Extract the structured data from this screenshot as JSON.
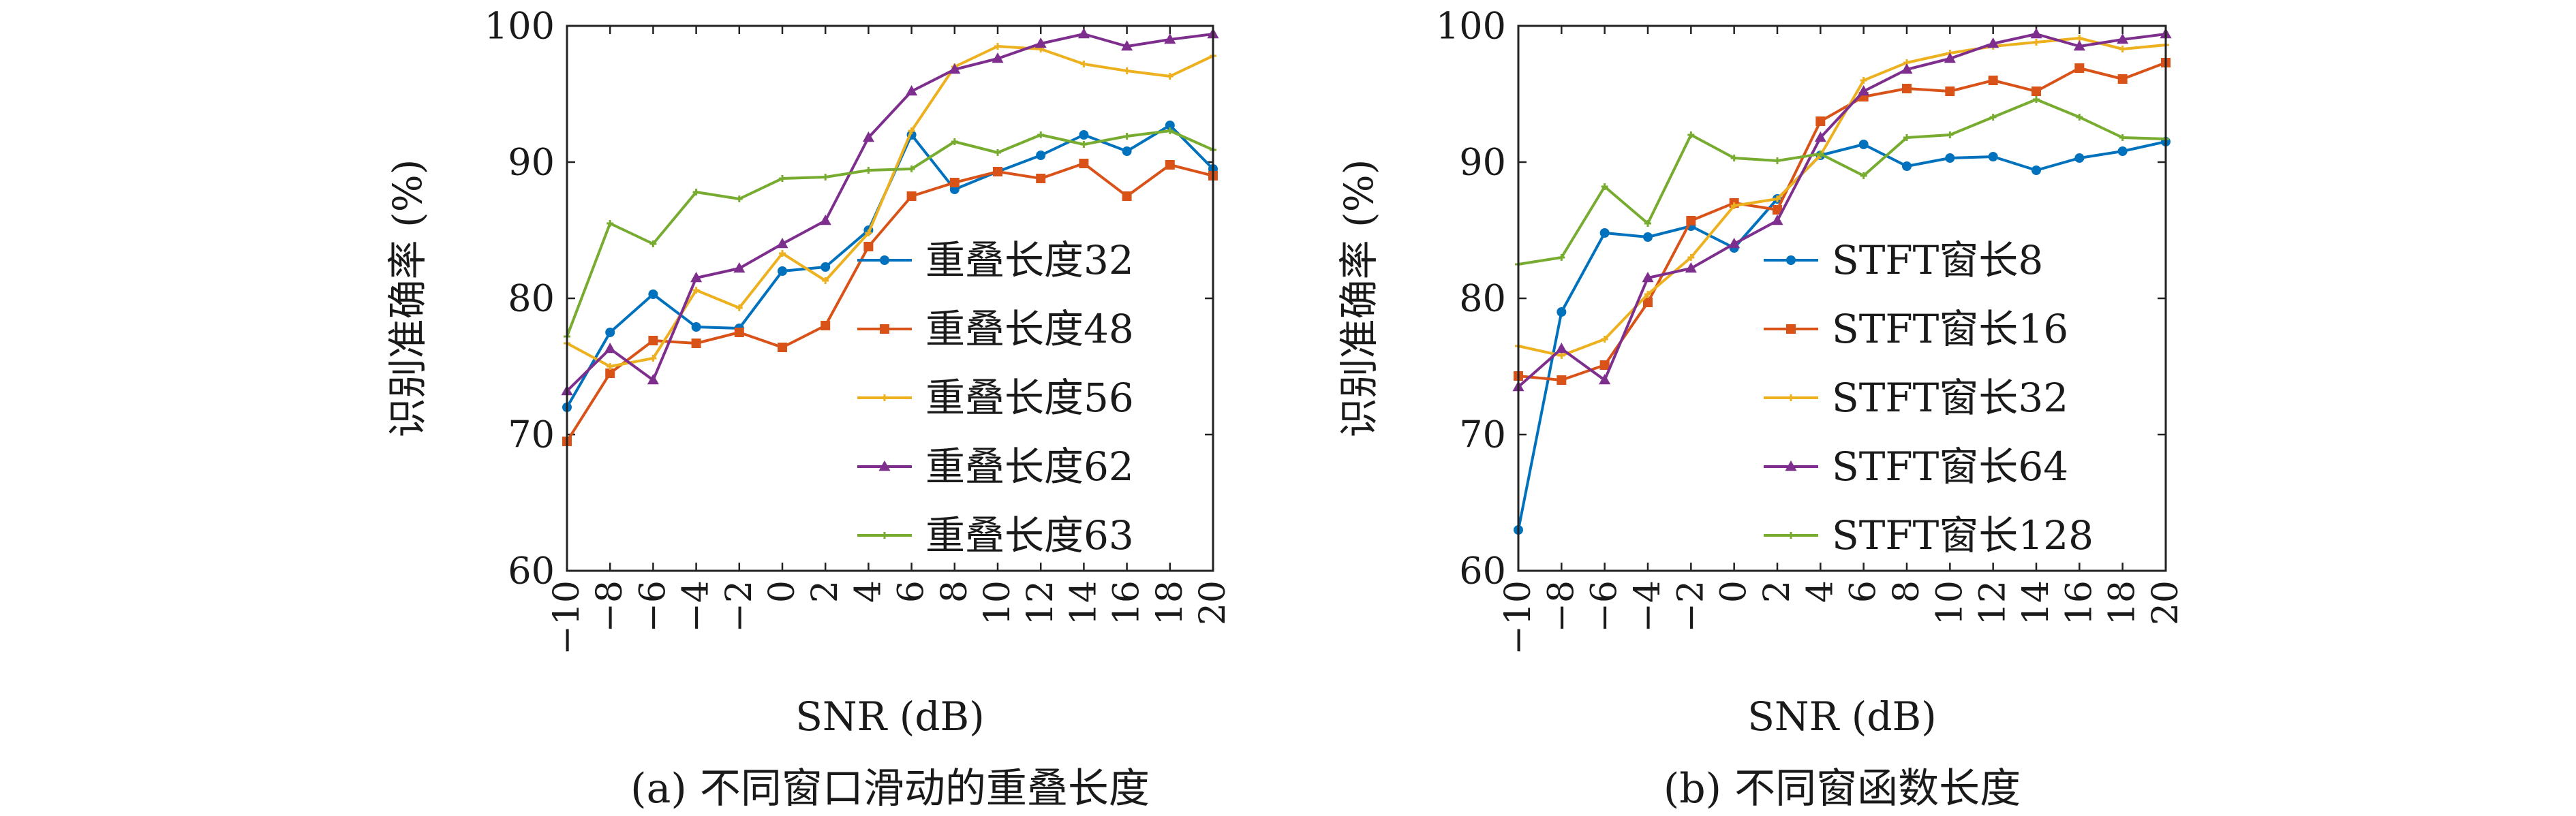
{
  "chart_data": [
    {
      "type": "line",
      "caption": "(a) 不同窗口滑动的重叠长度",
      "xlabel": "SNR (dB)",
      "ylabel": "识别准确率 (%)",
      "xlim": [
        -10,
        20
      ],
      "ylim": [
        60,
        100
      ],
      "xticks": [
        -10,
        -8,
        -6,
        -4,
        -2,
        0,
        2,
        4,
        6,
        8,
        10,
        12,
        14,
        16,
        18,
        20
      ],
      "xtick_labels": [
        "−10",
        "−8",
        "−6",
        "−4",
        "−2",
        "0",
        "2",
        "4",
        "6",
        "8",
        "10",
        "12",
        "14",
        "16",
        "18",
        "20"
      ],
      "yticks": [
        60,
        70,
        80,
        90,
        100
      ],
      "ytick_labels": [
        "60",
        "70",
        "80",
        "90",
        "100"
      ],
      "grid": false,
      "legend_position": "right",
      "x": [
        -10,
        -8,
        -6,
        -4,
        -2,
        0,
        2,
        4,
        6,
        8,
        10,
        12,
        14,
        16,
        18,
        20
      ],
      "series": [
        {
          "name": "重叠长度32",
          "color": "#0072BD",
          "marker": "circle",
          "values": [
            72.0,
            77.5,
            80.3,
            77.9,
            77.8,
            82.0,
            82.3,
            85.0,
            92.0,
            88.0,
            89.3,
            90.5,
            92.0,
            90.8,
            92.7,
            89.5
          ]
        },
        {
          "name": "重叠长度48",
          "color": "#D95319",
          "marker": "square",
          "values": [
            69.5,
            74.5,
            76.9,
            76.7,
            77.5,
            76.4,
            78.0,
            83.8,
            87.5,
            88.5,
            89.3,
            88.8,
            89.9,
            87.5,
            89.8,
            89.0
          ]
        },
        {
          "name": "重叠长度56",
          "color": "#EDB120",
          "marker": "plus",
          "values": [
            76.7,
            75.0,
            75.6,
            80.6,
            79.3,
            83.3,
            81.3,
            84.8,
            92.3,
            97.0,
            98.5,
            98.3,
            97.2,
            96.7,
            96.3,
            97.8
          ]
        },
        {
          "name": "重叠长度62",
          "color": "#7E2F8E",
          "marker": "triangle",
          "values": [
            73.2,
            76.3,
            74.0,
            81.5,
            82.2,
            84.0,
            85.7,
            91.8,
            95.2,
            96.8,
            97.6,
            98.7,
            99.4,
            98.5,
            99.0,
            99.4
          ]
        },
        {
          "name": "重叠长度63",
          "color": "#77AC30",
          "marker": "plus",
          "values": [
            77.2,
            85.5,
            84.0,
            87.8,
            87.3,
            88.8,
            88.9,
            89.4,
            89.5,
            91.5,
            90.7,
            92.0,
            91.3,
            91.9,
            92.3,
            90.9
          ]
        }
      ]
    },
    {
      "type": "line",
      "caption": "(b) 不同窗函数长度",
      "xlabel": "SNR (dB)",
      "ylabel": "识别准确率 (%)",
      "xlim": [
        -10,
        20
      ],
      "ylim": [
        60,
        100
      ],
      "xticks": [
        -10,
        -8,
        -6,
        -4,
        -2,
        0,
        2,
        4,
        6,
        8,
        10,
        12,
        14,
        16,
        18,
        20
      ],
      "xtick_labels": [
        "−10",
        "−8",
        "−6",
        "−4",
        "−2",
        "0",
        "2",
        "4",
        "6",
        "8",
        "10",
        "12",
        "14",
        "16",
        "18",
        "20"
      ],
      "yticks": [
        60,
        70,
        80,
        90,
        100
      ],
      "ytick_labels": [
        "60",
        "70",
        "80",
        "90",
        "100"
      ],
      "grid": false,
      "legend_position": "right",
      "x": [
        -10,
        -8,
        -6,
        -4,
        -2,
        0,
        2,
        4,
        6,
        8,
        10,
        12,
        14,
        16,
        18,
        20
      ],
      "series": [
        {
          "name": "STFT窗长8",
          "color": "#0072BD",
          "marker": "circle",
          "values": [
            63.0,
            79.0,
            84.8,
            84.5,
            85.3,
            83.7,
            87.3,
            90.5,
            91.3,
            89.7,
            90.3,
            90.4,
            89.4,
            90.3,
            90.8,
            91.5
          ]
        },
        {
          "name": "STFT窗长16",
          "color": "#D95319",
          "marker": "square",
          "values": [
            74.3,
            74.0,
            75.1,
            79.7,
            85.7,
            87.0,
            86.5,
            93.0,
            94.8,
            95.4,
            95.2,
            96.0,
            95.2,
            96.9,
            96.1,
            97.3
          ]
        },
        {
          "name": "STFT窗长32",
          "color": "#EDB120",
          "marker": "plus",
          "values": [
            76.5,
            75.8,
            77.0,
            80.3,
            83.0,
            86.8,
            87.3,
            90.5,
            96.0,
            97.3,
            98.0,
            98.5,
            98.8,
            99.1,
            98.3,
            98.6
          ]
        },
        {
          "name": "STFT窗长64",
          "color": "#7E2F8E",
          "marker": "triangle",
          "values": [
            73.5,
            76.3,
            74.0,
            81.5,
            82.2,
            84.0,
            85.7,
            91.8,
            95.2,
            96.8,
            97.6,
            98.7,
            99.4,
            98.5,
            99.0,
            99.4
          ]
        },
        {
          "name": "STFT窗长128",
          "color": "#77AC30",
          "marker": "plus",
          "values": [
            82.5,
            83.0,
            88.2,
            85.5,
            92.0,
            90.3,
            90.1,
            90.6,
            89.0,
            91.8,
            92.0,
            93.3,
            94.6,
            93.3,
            91.8,
            91.7
          ]
        }
      ]
    }
  ]
}
